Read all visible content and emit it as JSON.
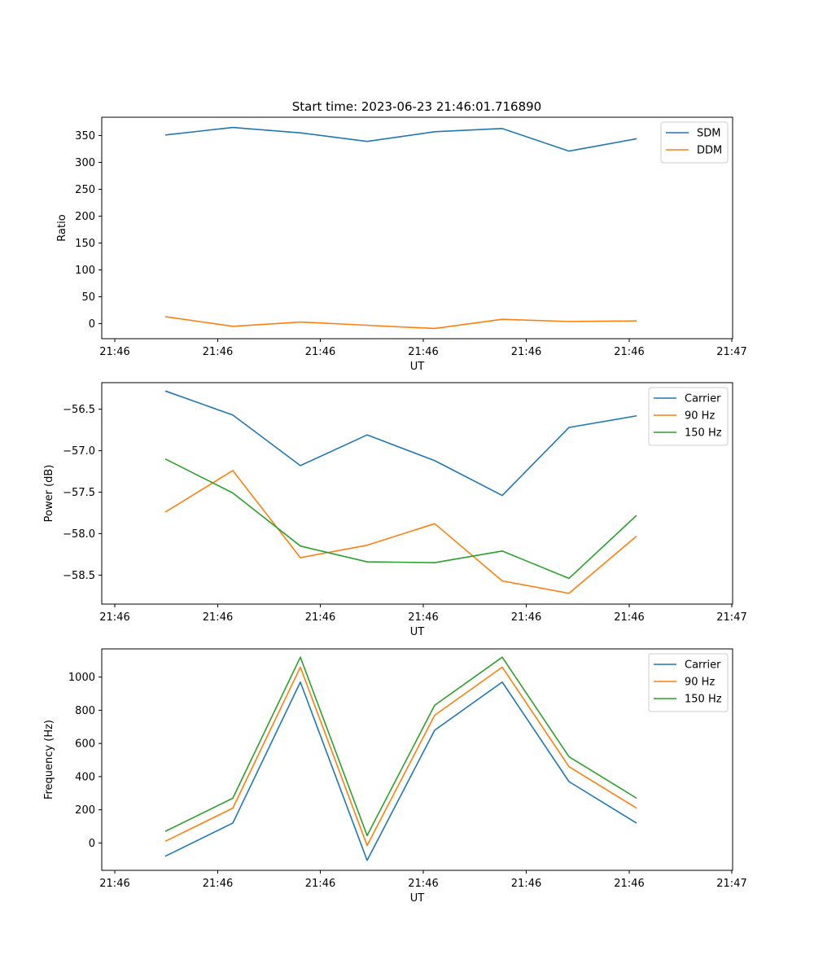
{
  "title": "Start time: 2023-06-23 21:46:01.716890",
  "colors": {
    "blue": "#1f77b4",
    "orange": "#ff7f0e",
    "green": "#2ca02c"
  },
  "chart_data": [
    {
      "type": "line",
      "xlabel": "UT",
      "ylabel": "Ratio",
      "x_tick_labels": [
        "21:46",
        "21:46",
        "21:46",
        "21:46",
        "21:46",
        "21:46",
        "21:47"
      ],
      "yticks": [
        0,
        50,
        100,
        150,
        200,
        250,
        300,
        350
      ],
      "ylim": [
        -28,
        384
      ],
      "legend_position": "upper right",
      "series": [
        {
          "name": "SDM",
          "color": "#1f77b4",
          "values": [
            351,
            365,
            355,
            339,
            357,
            363,
            321,
            344
          ]
        },
        {
          "name": "DDM",
          "color": "#ff7f0e",
          "values": [
            13,
            -5,
            3,
            -3,
            -9,
            8,
            4,
            5
          ]
        }
      ]
    },
    {
      "type": "line",
      "xlabel": "UT",
      "ylabel": "Power (dB)",
      "x_tick_labels": [
        "21:46",
        "21:46",
        "21:46",
        "21:46",
        "21:46",
        "21:46",
        "21:47"
      ],
      "yticks": [
        -58.5,
        -58.0,
        -57.5,
        -57.0,
        -56.5
      ],
      "ytick_labels": [
        "−58.5",
        "−58.0",
        "−57.5",
        "−57.0",
        "−56.5"
      ],
      "ylim": [
        -58.85,
        -56.18
      ],
      "legend_position": "upper right",
      "series": [
        {
          "name": "Carrier",
          "color": "#1f77b4",
          "values": [
            -56.28,
            -56.57,
            -57.18,
            -56.81,
            -57.12,
            -57.54,
            -56.72,
            -56.58
          ]
        },
        {
          "name": "90 Hz",
          "color": "#ff7f0e",
          "values": [
            -57.74,
            -57.24,
            -58.29,
            -58.14,
            -57.88,
            -58.57,
            -58.72,
            -58.03
          ]
        },
        {
          "name": "150 Hz",
          "color": "#2ca02c",
          "values": [
            -57.1,
            -57.51,
            -58.15,
            -58.34,
            -58.35,
            -58.21,
            -58.54,
            -57.78
          ]
        }
      ]
    },
    {
      "type": "line",
      "xlabel": "UT",
      "ylabel": "Frequency (Hz)",
      "x_tick_labels": [
        "21:46",
        "21:46",
        "21:46",
        "21:46",
        "21:46",
        "21:46",
        "21:47"
      ],
      "yticks": [
        0,
        200,
        400,
        600,
        800,
        1000
      ],
      "ylim": [
        -165,
        1170
      ],
      "legend_position": "upper right",
      "series": [
        {
          "name": "Carrier",
          "color": "#1f77b4",
          "values": [
            -80,
            120,
            970,
            -105,
            680,
            970,
            370,
            120
          ]
        },
        {
          "name": "90 Hz",
          "color": "#ff7f0e",
          "values": [
            10,
            210,
            1060,
            -15,
            770,
            1060,
            460,
            210
          ]
        },
        {
          "name": "150 Hz",
          "color": "#2ca02c",
          "values": [
            70,
            270,
            1120,
            45,
            830,
            1120,
            520,
            270
          ]
        }
      ]
    }
  ]
}
